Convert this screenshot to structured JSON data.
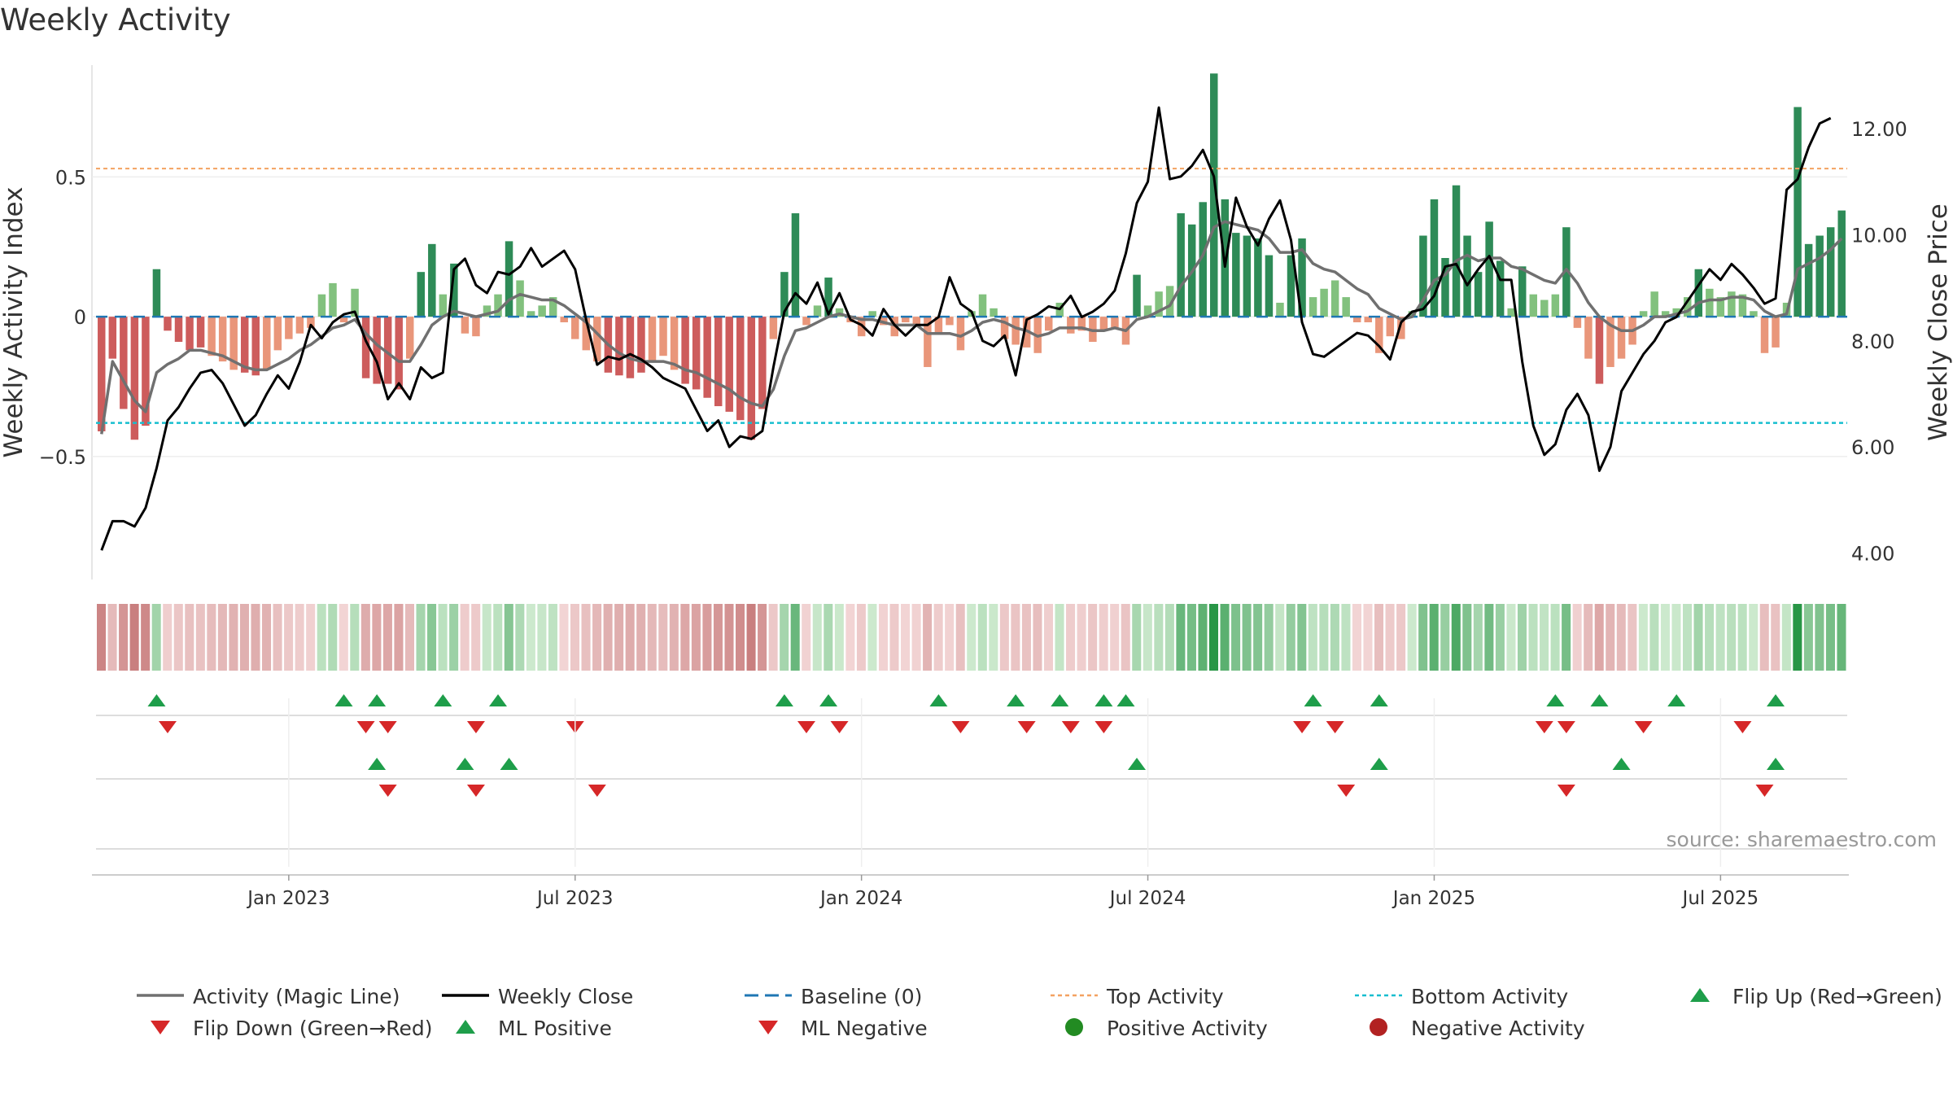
{
  "chart_data": {
    "type": "bar",
    "title": "Weekly Activity",
    "source": "source: sharemaestro.com",
    "ylabel_left": "Weekly Activity Index",
    "ylabel_right": "Weekly Close Price",
    "y_left_ticks": [
      {
        "v": 0.5,
        "label": "0.5"
      },
      {
        "v": 0,
        "label": "0"
      },
      {
        "v": -0.5,
        "label": "−0.5"
      }
    ],
    "y_right_ticks": [
      {
        "v": 12,
        "label": "12.00"
      },
      {
        "v": 10,
        "label": "10.00"
      },
      {
        "v": 8,
        "label": "8.00"
      },
      {
        "v": 6,
        "label": "6.00"
      },
      {
        "v": 4,
        "label": "4.00"
      }
    ],
    "ylim_left": [
      -0.94,
      0.9
    ],
    "ylim_right": [
      3.5,
      13.2
    ],
    "x_ticks": [
      {
        "week": 17,
        "label": "Jan 2023"
      },
      {
        "week": 43,
        "label": "Jul 2023"
      },
      {
        "week": 69,
        "label": "Jan 2024"
      },
      {
        "week": 95,
        "label": "Jul 2024"
      },
      {
        "week": 121,
        "label": "Jan 2025"
      },
      {
        "week": 147,
        "label": "Jul 2025"
      }
    ],
    "top_activity": 0.53,
    "bottom_activity": -0.38,
    "activity": [
      -0.41,
      -0.15,
      -0.33,
      -0.44,
      -0.39,
      0.17,
      -0.05,
      -0.09,
      -0.12,
      -0.11,
      -0.14,
      -0.16,
      -0.19,
      -0.2,
      -0.21,
      -0.19,
      -0.12,
      -0.08,
      -0.06,
      -0.04,
      0.08,
      0.12,
      -0.02,
      0.1,
      -0.22,
      -0.24,
      -0.24,
      -0.26,
      -0.15,
      0.16,
      0.26,
      0.08,
      0.19,
      -0.06,
      -0.07,
      0.04,
      0.08,
      0.27,
      0.13,
      0.02,
      0.04,
      0.07,
      -0.02,
      -0.08,
      -0.12,
      -0.16,
      -0.2,
      -0.21,
      -0.22,
      -0.2,
      -0.16,
      -0.14,
      -0.19,
      -0.24,
      -0.26,
      -0.29,
      -0.32,
      -0.34,
      -0.37,
      -0.44,
      -0.33,
      -0.08,
      0.16,
      0.37,
      -0.03,
      0.04,
      0.14,
      0.03,
      -0.02,
      -0.07,
      0.02,
      -0.03,
      -0.07,
      -0.02,
      -0.03,
      -0.18,
      -0.06,
      -0.03,
      -0.12,
      0.02,
      0.08,
      0.03,
      -0.08,
      -0.1,
      -0.11,
      -0.13,
      -0.05,
      0.05,
      -0.06,
      -0.05,
      -0.09,
      -0.05,
      -0.04,
      -0.1,
      0.15,
      0.04,
      0.09,
      0.11,
      0.37,
      0.33,
      0.41,
      0.87,
      0.42,
      0.3,
      0.29,
      0.28,
      0.22,
      0.05,
      0.22,
      0.28,
      0.07,
      0.1,
      0.13,
      0.07,
      -0.02,
      -0.02,
      -0.13,
      -0.07,
      -0.08,
      0.02,
      0.29,
      0.42,
      0.21,
      0.47,
      0.29,
      0.16,
      0.34,
      0.2,
      0.03,
      0.18,
      0.08,
      0.06,
      0.08,
      0.32,
      -0.04,
      -0.15,
      -0.24,
      -0.18,
      -0.15,
      -0.1,
      0.02,
      0.09,
      0.02,
      0.03,
      0.07,
      0.17,
      0.1,
      0.07,
      0.09,
      0.08,
      0.02,
      -0.13,
      -0.11,
      0.05,
      0.75,
      0.26,
      0.29,
      0.32,
      0.38
    ],
    "magic_line": [
      -0.42,
      -0.16,
      -0.23,
      -0.3,
      -0.34,
      -0.2,
      -0.17,
      -0.15,
      -0.12,
      -0.12,
      -0.13,
      -0.14,
      -0.16,
      -0.18,
      -0.19,
      -0.19,
      -0.17,
      -0.15,
      -0.12,
      -0.1,
      -0.07,
      -0.04,
      -0.03,
      -0.01,
      -0.06,
      -0.1,
      -0.13,
      -0.16,
      -0.16,
      -0.1,
      -0.03,
      0.0,
      0.02,
      0.01,
      0.0,
      0.01,
      0.02,
      0.06,
      0.08,
      0.07,
      0.06,
      0.06,
      0.04,
      0.01,
      -0.02,
      -0.06,
      -0.1,
      -0.13,
      -0.15,
      -0.16,
      -0.16,
      -0.16,
      -0.17,
      -0.19,
      -0.2,
      -0.22,
      -0.24,
      -0.26,
      -0.29,
      -0.31,
      -0.32,
      -0.26,
      -0.14,
      -0.05,
      -0.04,
      -0.02,
      0.0,
      0.01,
      0.0,
      -0.01,
      -0.01,
      -0.02,
      -0.03,
      -0.03,
      -0.03,
      -0.06,
      -0.06,
      -0.06,
      -0.07,
      -0.05,
      -0.02,
      -0.01,
      -0.02,
      -0.04,
      -0.05,
      -0.07,
      -0.06,
      -0.04,
      -0.04,
      -0.04,
      -0.05,
      -0.05,
      -0.04,
      -0.05,
      -0.01,
      0.0,
      0.02,
      0.04,
      0.11,
      0.16,
      0.22,
      0.32,
      0.34,
      0.33,
      0.32,
      0.31,
      0.28,
      0.23,
      0.23,
      0.24,
      0.19,
      0.17,
      0.16,
      0.13,
      0.1,
      0.08,
      0.03,
      0.01,
      -0.01,
      0.0,
      0.06,
      0.13,
      0.15,
      0.2,
      0.22,
      0.2,
      0.21,
      0.21,
      0.18,
      0.17,
      0.15,
      0.13,
      0.12,
      0.17,
      0.12,
      0.05,
      0.0,
      -0.03,
      -0.05,
      -0.05,
      -0.03,
      0.0,
      0.0,
      0.01,
      0.02,
      0.05,
      0.06,
      0.06,
      0.07,
      0.07,
      0.06,
      0.02,
      0.0,
      0.01,
      0.17,
      0.19,
      0.21,
      0.24,
      0.28
    ],
    "weekly_close": [
      4.05,
      4.6,
      4.6,
      4.5,
      4.85,
      5.6,
      6.5,
      6.75,
      7.1,
      7.4,
      7.45,
      7.2,
      6.8,
      6.4,
      6.6,
      7.0,
      7.35,
      7.1,
      7.6,
      8.3,
      8.05,
      8.35,
      8.5,
      8.55,
      8.0,
      7.6,
      6.9,
      7.2,
      6.9,
      7.5,
      7.3,
      7.4,
      9.35,
      9.55,
      9.05,
      8.9,
      9.3,
      9.25,
      9.4,
      9.75,
      9.4,
      9.55,
      9.7,
      9.35,
      8.4,
      7.55,
      7.7,
      7.65,
      7.75,
      7.65,
      7.5,
      7.3,
      7.2,
      7.1,
      6.7,
      6.3,
      6.5,
      6.0,
      6.2,
      6.15,
      6.3,
      7.5,
      8.55,
      8.9,
      8.7,
      9.1,
      8.5,
      8.9,
      8.4,
      8.3,
      8.1,
      8.6,
      8.3,
      8.1,
      8.3,
      8.3,
      8.45,
      9.2,
      8.7,
      8.55,
      8.0,
      7.9,
      8.1,
      7.35,
      8.4,
      8.5,
      8.65,
      8.6,
      8.85,
      8.45,
      8.55,
      8.7,
      8.95,
      9.65,
      10.6,
      11.0,
      12.4,
      11.05,
      11.1,
      11.3,
      11.6,
      11.1,
      9.4,
      10.7,
      10.15,
      9.8,
      10.3,
      10.65,
      9.9,
      8.35,
      7.75,
      7.7,
      7.85,
      8.0,
      8.15,
      8.1,
      7.9,
      7.65,
      8.35,
      8.55,
      8.6,
      8.85,
      9.4,
      9.45,
      9.05,
      9.35,
      9.6,
      9.15,
      9.15,
      7.6,
      6.4,
      5.85,
      6.05,
      6.7,
      7.0,
      6.6,
      5.55,
      6.0,
      7.05,
      7.4,
      7.75,
      8.0,
      8.35,
      8.45,
      8.75,
      9.05,
      9.35,
      9.15,
      9.45,
      9.25,
      9.0,
      8.7,
      8.8,
      10.85,
      11.05,
      11.65,
      12.1,
      12.2
    ],
    "flip_up": [
      5,
      22,
      25,
      31,
      36,
      62,
      66,
      76,
      83,
      87,
      91,
      93,
      110,
      116,
      132,
      136,
      143,
      152
    ],
    "flip_down": [
      6,
      24,
      26,
      34,
      43,
      64,
      67,
      78,
      84,
      88,
      91,
      109,
      112,
      131,
      133,
      140,
      149
    ],
    "ml_positive": [
      25,
      33,
      37,
      94,
      116,
      138,
      152
    ],
    "ml_negative": [
      26,
      34,
      45,
      113,
      133,
      151
    ],
    "legend": [
      {
        "label": "Activity (Magic Line)",
        "kind": "line",
        "color": "#707070"
      },
      {
        "label": "Weekly Close",
        "kind": "line",
        "color": "#000000"
      },
      {
        "label": "Baseline (0)",
        "kind": "dashed",
        "color": "#1f77b4"
      },
      {
        "label": "Top Activity",
        "kind": "dotted",
        "color": "#f4a261"
      },
      {
        "label": "Bottom Activity",
        "kind": "dotted",
        "color": "#17becf"
      },
      {
        "label": "Flip Up (Red→Green)",
        "kind": "tri-up",
        "color": "#1e9e4a"
      },
      {
        "label": "Flip Down (Green→Red)",
        "kind": "tri-down",
        "color": "#d62728"
      },
      {
        "label": "ML Positive",
        "kind": "tri-up",
        "color": "#1e9e4a"
      },
      {
        "label": "ML Negative",
        "kind": "tri-down",
        "color": "#d62728"
      },
      {
        "label": "Positive Activity",
        "kind": "dot",
        "color": "#228b22"
      },
      {
        "label": "Negative Activity",
        "kind": "dot",
        "color": "#b22222"
      }
    ],
    "colors": {
      "pos_strong": "#2e8b57",
      "pos_weak": "#82c17e",
      "neg_strong": "#cd5c5c",
      "neg_weak": "#e9967a",
      "close": "#000000",
      "magic": "#707070",
      "baseline": "#1f77b4",
      "top": "#f4a261",
      "bottom": "#17becf",
      "tri_up": "#1e9e4a",
      "tri_down": "#d62728"
    }
  }
}
